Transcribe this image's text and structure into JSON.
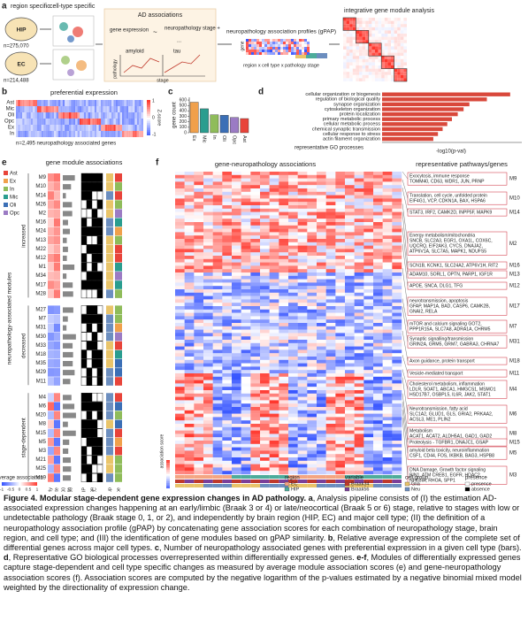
{
  "panel_a": {
    "label": "a",
    "region_specific": "region specific",
    "cell_type_specific": "cell-type specific",
    "hip": "HIP",
    "hip_n": "n=275,070",
    "ec": "EC",
    "ec_n": "n=214,488",
    "ad_associations": "AD associations",
    "gene_expression": "gene expression",
    "tilde": "~",
    "neuropathology_stage": "neuropathology stage +",
    "dots": "...",
    "amyloid": "amyloid",
    "tau": "tau",
    "pathology": "pathology",
    "stage": "stage",
    "gpap": "neuropathology association profiles (gPAP)",
    "gene": "gene",
    "profile_axis": "region x cell type x pathology stage",
    "integrative": "integrative gene module analysis"
  },
  "panel_b": {
    "label": "b",
    "title": "preferential expression",
    "rows": [
      "Ast",
      "Mic",
      "Oli",
      "Opc",
      "Ex",
      "In"
    ],
    "note": "n=2,495 neuropathology associated genes",
    "colorbar_title": "Z-score",
    "colorbar_ticks": [
      "1",
      "0",
      "-1"
    ]
  },
  "panel_c": {
    "label": "c",
    "type": "bar",
    "ylabel": "gene count",
    "categories": [
      "Ex",
      "Mic",
      "In",
      "Oli",
      "Opc",
      "Ast"
    ],
    "values": [
      560,
      440,
      330,
      320,
      280,
      260
    ],
    "colors": [
      "#f0a04b",
      "#2a9d8f",
      "#8fbc5a",
      "#3b6fb6",
      "#9b7bc4",
      "#e8443a"
    ],
    "ylim": [
      0,
      650
    ],
    "yticks": [
      0,
      100,
      200,
      300,
      400,
      500,
      600
    ]
  },
  "panel_d": {
    "label": "d",
    "type": "bar",
    "color": "#d9483b",
    "categories": [
      "cellular organization or biogenesis",
      "regulation of biological quality",
      "synapse organization",
      "cytoskeleton organization",
      "protein localization",
      "primary metabolic process",
      "cellular metabolic process",
      "chemical synaptic transmission",
      "cellular response to stress",
      "actin filament organization"
    ],
    "values": [
      11,
      9,
      7.5,
      7,
      6.5,
      6,
      5.6,
      5.2,
      4.8,
      4.4
    ],
    "xlim": [
      0,
      12
    ],
    "ylabel": "representative GO processes",
    "xlabel": "-log10(p-val)"
  },
  "panel_e": {
    "label": "e",
    "title": "gene module associations",
    "legend": [
      {
        "name": "Ast",
        "color": "#e8443a"
      },
      {
        "name": "Ex",
        "color": "#f0a04b"
      },
      {
        "name": "In",
        "color": "#8fbc5a"
      },
      {
        "name": "Mic",
        "color": "#2a9d8f"
      },
      {
        "name": "Oli",
        "color": "#3b6fb6"
      },
      {
        "name": "Opc",
        "color": "#9b7bc4"
      }
    ],
    "axis_title": "neuropathology-associated modules",
    "groups": [
      {
        "name": "increased",
        "modules": [
          "M9",
          "M10",
          "M14",
          "M26",
          "M2",
          "M16",
          "M24",
          "M13",
          "M22",
          "M12",
          "M1",
          "M34",
          "M17",
          "M28"
        ]
      },
      {
        "name": "decreased",
        "modules": [
          "M27",
          "M7",
          "M31",
          "M30",
          "M33",
          "M18",
          "M35",
          "M29",
          "M11"
        ]
      },
      {
        "name": "stage-dependent",
        "modules": [
          "M4",
          "M6",
          "M20",
          "M8",
          "M15",
          "M5",
          "M3",
          "M21",
          "M25",
          "M19"
        ]
      }
    ],
    "columns": [
      "early",
      "late",
      "size",
      "HIP",
      "EC",
      "region",
      "cell group",
      "cell type"
    ],
    "size_ticks": [
      "100",
      "200"
    ],
    "avg_title": "average association",
    "avg_ticks": [
      "-1",
      "-0.5",
      "0",
      "0.5",
      "1"
    ]
  },
  "panel_f": {
    "label": "f",
    "title": "gene-neuropathology associations",
    "pathways_title": "representative pathways/genes",
    "score_title": "association score",
    "pathways": [
      {
        "module": "M9",
        "lines": [
          "Exocytosis, immune response",
          "TOMM40, CD63, WDR1, JUN, PRNP"
        ]
      },
      {
        "module": "M10",
        "lines": [
          "Translation, cell cycle, unfolded protein",
          "EIF4G1, VCP, CDKN1A, BAX, HSPA6"
        ]
      },
      {
        "module": "M14",
        "lines": [
          "STAT3, IRF2, CAMK2D, INPP5F, MAPK9"
        ]
      },
      {
        "module": "M2",
        "lines": [
          "Energy metabolism/mitochondria",
          "SNCB, SLC2A3, EGR1, OXA1L, COX6C,",
          "UQCRQ, EIF2AK3, CYCS, DNAJA2,",
          "ATP6V1A, SLC7A5, MAPK1, NDUFS5"
        ]
      },
      {
        "module": "M16",
        "lines": [
          "SCN1B, KCNK1, SLC24A2, ATP6V1H, RIT2"
        ]
      },
      {
        "module": "M13",
        "lines": [
          "ADAM10, SORL1, OPTN, PARP1, IGF1R"
        ]
      },
      {
        "module": "M12",
        "lines": [
          "APOE, SNCA, DLG1, TFG"
        ]
      },
      {
        "module": "M17",
        "lines": [
          "neurotransmission, apoptosis",
          "GFAP, MAP1A, BAD, CASP6, CAMK2B,",
          "GNAI2, RELA"
        ]
      },
      {
        "module": "M7",
        "lines": [
          "mTOR and calcium signaling  GOT2,",
          "PPP1R15A, SLC7A8, ADRA1A, CHRM5"
        ]
      },
      {
        "module": "M31",
        "lines": [
          "Synaptic signalling/transmission",
          "GRIN2A, GRM5, GRM7, GABRA3, CHRNA7"
        ]
      },
      {
        "module": "M18",
        "lines": [
          "Axon guidance, protein transport"
        ]
      },
      {
        "module": "M11",
        "lines": [
          "Vesicle-mediated transport"
        ]
      },
      {
        "module": "M4",
        "lines": [
          "Cholesterol metabolism, inflammation",
          "LDLR, SOAT1, ABCA1, HMGCS1, MSMO1",
          "HSD17B7, OSBPL5, IL6R, JAK2, STAT1"
        ]
      },
      {
        "module": "M6",
        "lines": [
          "Neurotransmission, fatty acid",
          "SLC1A2, GLUD1, GLS, GRIA2, PRKAA2,",
          "ACSL3, ME1, PLIN2"
        ]
      },
      {
        "module": "M8",
        "lines": [
          "Metabolism",
          "ACAT1, ACAT2, ALDH5A1, GAD1, GAD2"
        ]
      },
      {
        "module": "M15",
        "lines": [
          "Proteolysis - TGFBR1, DNAJC1, GSAP"
        ]
      },
      {
        "module": "M5",
        "lines": [
          "amyloid beta toxicity, neuroinflammation",
          "CSF1, CD44, FOS, IKBKB, BAG3, HSPB8"
        ]
      },
      {
        "module": "M3",
        "lines": [
          "DNA Damage, Growth factor signaling",
          "BIN1, ATM CREB1, EGFR, HDAC2,",
          "NFKBIA, RHOA, SPP1"
        ]
      }
    ],
    "legend": [
      {
        "title": "region",
        "items": [
          {
            "name": "EC",
            "color": "#f4a582"
          },
          {
            "name": "HIP",
            "color": "#4dac9b"
          }
        ]
      },
      {
        "title": "variable",
        "items": [
          {
            "name": "Braak34",
            "color": "#c0392b"
          },
          {
            "name": "Braak56",
            "color": "#7b3f99"
          }
        ]
      },
      {
        "title": "cell group",
        "items": [
          {
            "name": "Glia",
            "color": "#e9c46a"
          },
          {
            "name": "Neu",
            "color": "#6c8ebf"
          }
        ]
      },
      {
        "title": "presence",
        "items": [
          {
            "name": "presence",
            "color": "#ffffff"
          },
          {
            "name": "absence",
            "color": "#000000"
          }
        ]
      }
    ]
  },
  "caption": [
    "Figure 4. Modular stage-dependent gene expression changes in AD pathology.",
    " ",
    "a",
    ", Analysis pipeline consists of (I) the estimation AD-associated expression changes happening at an early/limbic (Braak 3 or 4) or late/neocortical (Braak 5 or 6) stage, relative to stages with low or undetectable pathology (Braak stage 0, 1, or 2), and independently by brain region (HIP, EC) and major cell type; (II) the definition of a neuropathology association profile (gPAP) by concatenating gene association scores for each combination of neuropathology stage, brain region, and cell type; and (III) the identification of gene modules based on gPAP similarity. ",
    "b",
    ", Relative average expression of the complete set of differential genes across major cell types. ",
    "c",
    ", Number of neuropathology associated genes with preferential expression in a given cell type (bars). ",
    "d",
    ", Representative GO biological processes overrepresented within differentially expressed genes. ",
    "e-f",
    ", Modules of differentially expressed genes capture stage-dependent and cell type specific changes as measured by average module association scores (e) and gene-neuropathology association scores (f). Association scores are computed by the negative logarithm of the p-values estimated by a negative binomial mixed model weighted by the directionality of expression change."
  ]
}
